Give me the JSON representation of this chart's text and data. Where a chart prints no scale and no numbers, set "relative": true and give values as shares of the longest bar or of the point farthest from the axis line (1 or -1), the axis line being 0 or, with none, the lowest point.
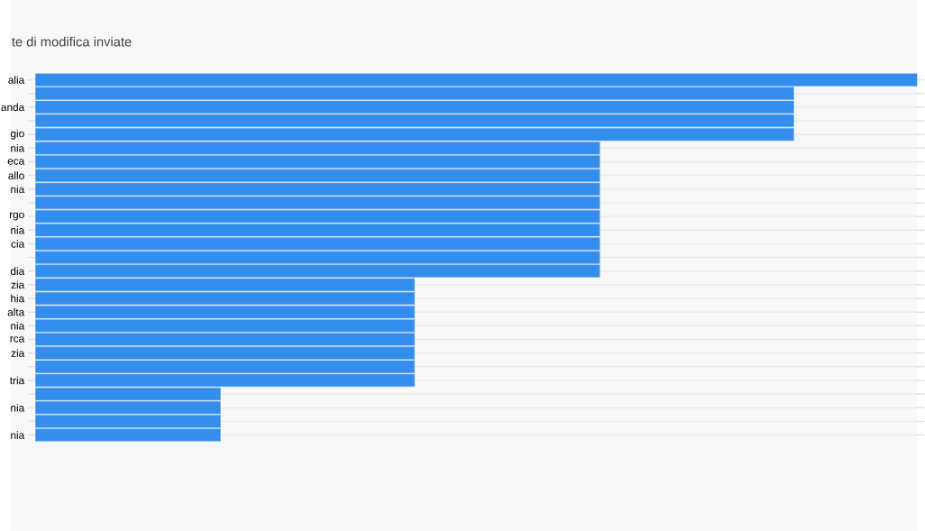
{
  "chart_data": {
    "type": "bar",
    "orientation": "horizontal",
    "relative": true,
    "title": "te di modifica inviate",
    "categories": [
      "alia",
      null,
      "anda",
      null,
      "gio",
      "nia",
      "eca",
      "allo",
      "nia",
      null,
      "rgo",
      "nia",
      "cia",
      null,
      "dia",
      "zia",
      "hia",
      "alta",
      "nia",
      "rca",
      "zia",
      null,
      "tria",
      null,
      "nia",
      null,
      "nia"
    ],
    "values": [
      1,
      0.86,
      0.86,
      0.86,
      0.86,
      0.64,
      0.64,
      0.64,
      0.64,
      0.64,
      0.64,
      0.64,
      0.64,
      0.64,
      0.64,
      0.43,
      0.43,
      0.43,
      0.43,
      0.43,
      0.43,
      0.43,
      0.43,
      0.21,
      0.21,
      0.21,
      0.21
    ],
    "color": "#338ded",
    "grid": "y"
  }
}
